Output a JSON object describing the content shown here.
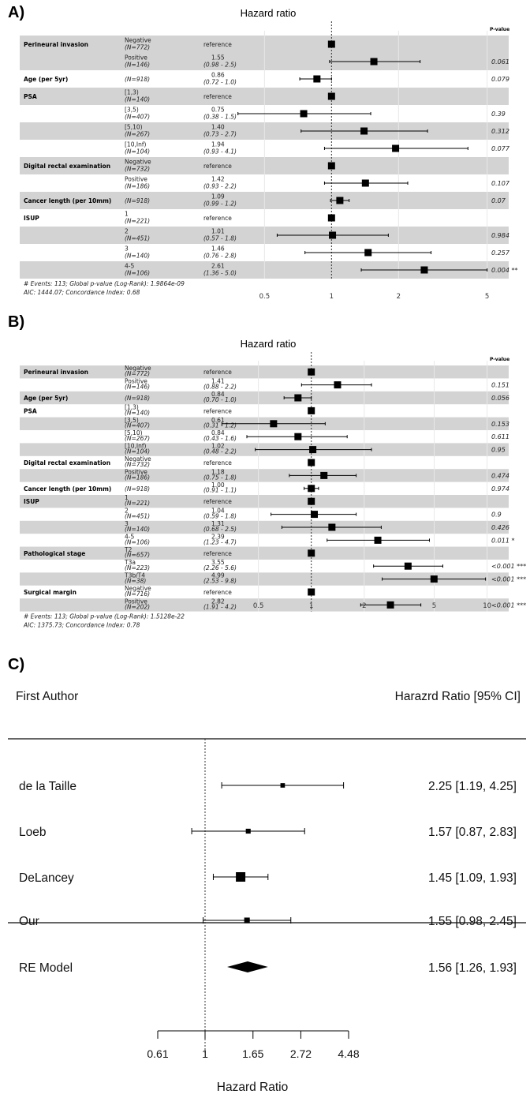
{
  "chart_data": [
    {
      "panel": "A)",
      "type": "forest",
      "title": "Hazard ratio",
      "pvalue_header": "P-value",
      "x_scale": "log",
      "x_ticks": [
        0.5,
        1,
        2,
        5
      ],
      "x_tick_labels": [
        "0.5",
        "1",
        "2",
        "5"
      ],
      "xlim": [
        0.4,
        6
      ],
      "reference_line": 1,
      "rows": [
        {
          "variable": "Perineural invasion",
          "level": "Negative",
          "n": "(N=772)",
          "ref": "reference",
          "hr": 1,
          "shade": true
        },
        {
          "variable": "",
          "level": "Positive",
          "n": "(N=146)",
          "est": "1.55",
          "ci": "(0.98 - 2.5)",
          "hr": 1.55,
          "lo": 0.98,
          "hi": 2.5,
          "p": "0.061",
          "shade": true
        },
        {
          "variable": "Age (per 5yr)",
          "level": "",
          "n": "(N=918)",
          "est": "0.86",
          "ci": "(0.72 - 1.0)",
          "hr": 0.86,
          "lo": 0.72,
          "hi": 1.0,
          "p": "0.079",
          "shade": false
        },
        {
          "variable": "PSA",
          "level": "[1,3)",
          "n": "(N=140)",
          "ref": "reference",
          "hr": 1,
          "shade": true
        },
        {
          "variable": "",
          "level": "[3,5)",
          "n": "(N=407)",
          "est": "0.75",
          "ci": "(0.38 - 1.5)",
          "hr": 0.75,
          "lo": 0.38,
          "hi": 1.5,
          "p": "0.39",
          "shade": false
        },
        {
          "variable": "",
          "level": "[5,10)",
          "n": "(N=267)",
          "est": "1.40",
          "ci": "(0.73 - 2.7)",
          "hr": 1.4,
          "lo": 0.73,
          "hi": 2.7,
          "p": "0.312",
          "shade": true
        },
        {
          "variable": "",
          "level": "[10,Inf)",
          "n": "(N=104)",
          "est": "1.94",
          "ci": "(0.93 - 4.1)",
          "hr": 1.94,
          "lo": 0.93,
          "hi": 4.1,
          "p": "0.077",
          "shade": false
        },
        {
          "variable": "Digital rectal examination",
          "level": "Negative",
          "n": "(N=732)",
          "ref": "reference",
          "hr": 1,
          "shade": true
        },
        {
          "variable": "",
          "level": "Positive",
          "n": "(N=186)",
          "est": "1.42",
          "ci": "(0.93 - 2.2)",
          "hr": 1.42,
          "lo": 0.93,
          "hi": 2.2,
          "p": "0.107",
          "shade": false
        },
        {
          "variable": "Cancer length (per 10mm)",
          "level": "",
          "n": "(N=918)",
          "est": "1.09",
          "ci": "(0.99 - 1.2)",
          "hr": 1.09,
          "lo": 0.99,
          "hi": 1.2,
          "p": "0.07",
          "shade": true
        },
        {
          "variable": "ISUP",
          "level": "1",
          "n": "(N=221)",
          "ref": "reference",
          "hr": 1,
          "shade": false
        },
        {
          "variable": "",
          "level": "2",
          "n": "(N=451)",
          "est": "1.01",
          "ci": "(0.57 - 1.8)",
          "hr": 1.01,
          "lo": 0.57,
          "hi": 1.8,
          "p": "0.984",
          "shade": true
        },
        {
          "variable": "",
          "level": "3",
          "n": "(N=140)",
          "est": "1.46",
          "ci": "(0.76 - 2.8)",
          "hr": 1.46,
          "lo": 0.76,
          "hi": 2.8,
          "p": "0.257",
          "shade": false
        },
        {
          "variable": "",
          "level": "4-5",
          "n": "(N=106)",
          "est": "2.61",
          "ci": "(1.36 - 5.0)",
          "hr": 2.61,
          "lo": 1.36,
          "hi": 5.0,
          "p": "0.004 **",
          "shade": true
        }
      ],
      "footnotes": [
        "# Events: 113; Global p-value (Log-Rank): 1.9864e-09",
        "AIC: 1444.07; Concordance Index: 0.68"
      ]
    },
    {
      "panel": "B)",
      "type": "forest",
      "title": "Hazard ratio",
      "pvalue_header": "P-value",
      "x_scale": "log",
      "x_ticks": [
        0.5,
        1,
        2,
        5,
        10
      ],
      "x_tick_labels": [
        "0.5",
        "1",
        "2",
        "5",
        "10"
      ],
      "xlim": [
        0.4,
        13
      ],
      "reference_line": 1,
      "rows": [
        {
          "variable": "Perineural invasion",
          "level": "Negative",
          "n": "(N=772)",
          "ref": "reference",
          "hr": 1,
          "shade": true
        },
        {
          "variable": "",
          "level": "Positive",
          "n": "(N=146)",
          "est": "1.41",
          "ci": "(0.88 - 2.2)",
          "hr": 1.41,
          "lo": 0.88,
          "hi": 2.2,
          "p": "0.151",
          "shade": false
        },
        {
          "variable": "Age (per 5yr)",
          "level": "",
          "n": "(N=918)",
          "est": "0.84",
          "ci": "(0.70 - 1.0)",
          "hr": 0.84,
          "lo": 0.7,
          "hi": 1.0,
          "p": "0.056",
          "shade": true
        },
        {
          "variable": "PSA",
          "level": "[1,3)",
          "n": "(N=140)",
          "ref": "reference",
          "hr": 1,
          "shade": false
        },
        {
          "variable": "",
          "level": "[3,5)",
          "n": "(N=407)",
          "est": "0.61",
          "ci": "(0.31 - 1.2)",
          "hr": 0.61,
          "lo": 0.31,
          "hi": 1.2,
          "p": "0.153",
          "shade": true
        },
        {
          "variable": "",
          "level": "[5,10)",
          "n": "(N=267)",
          "est": "0.84",
          "ci": "(0.43 - 1.6)",
          "hr": 0.84,
          "lo": 0.43,
          "hi": 1.6,
          "p": "0.611",
          "shade": false
        },
        {
          "variable": "",
          "level": "[10,Inf)",
          "n": "(N=104)",
          "est": "1.02",
          "ci": "(0.48 - 2.2)",
          "hr": 1.02,
          "lo": 0.48,
          "hi": 2.2,
          "p": "0.95",
          "shade": true
        },
        {
          "variable": "Digital rectal examination",
          "level": "Negative",
          "n": "(N=732)",
          "ref": "reference",
          "hr": 1,
          "shade": false
        },
        {
          "variable": "",
          "level": "Positive",
          "n": "(N=186)",
          "est": "1.18",
          "ci": "(0.75 - 1.8)",
          "hr": 1.18,
          "lo": 0.75,
          "hi": 1.8,
          "p": "0.474",
          "shade": true
        },
        {
          "variable": "Cancer length (per 10mm)",
          "level": "",
          "n": "(N=918)",
          "est": "1.00",
          "ci": "(0.91 - 1.1)",
          "hr": 1.0,
          "lo": 0.91,
          "hi": 1.1,
          "p": "0.974",
          "shade": false
        },
        {
          "variable": "ISUP",
          "level": "1",
          "n": "(N=221)",
          "ref": "reference",
          "hr": 1,
          "shade": true
        },
        {
          "variable": "",
          "level": "2",
          "n": "(N=451)",
          "est": "1.04",
          "ci": "(0.59 - 1.8)",
          "hr": 1.04,
          "lo": 0.59,
          "hi": 1.8,
          "p": "0.9",
          "shade": false
        },
        {
          "variable": "",
          "level": "3",
          "n": "(N=140)",
          "est": "1.31",
          "ci": "(0.68 - 2.5)",
          "hr": 1.31,
          "lo": 0.68,
          "hi": 2.5,
          "p": "0.426",
          "shade": true
        },
        {
          "variable": "",
          "level": "4-5",
          "n": "(N=106)",
          "est": "2.39",
          "ci": "(1.23 - 4.7)",
          "hr": 2.39,
          "lo": 1.23,
          "hi": 4.7,
          "p": "0.011 *",
          "shade": false
        },
        {
          "variable": "Pathological stage",
          "level": "T2",
          "n": "(N=657)",
          "ref": "reference",
          "hr": 1,
          "shade": true
        },
        {
          "variable": "",
          "level": "T3a",
          "n": "(N=223)",
          "est": "3.55",
          "ci": "(2.26 - 5.6)",
          "hr": 3.55,
          "lo": 2.26,
          "hi": 5.6,
          "p": "<0.001 ***",
          "shade": false
        },
        {
          "variable": "",
          "level": "T3b/T4",
          "n": "(N=38)",
          "est": "4.99",
          "ci": "(2.53 - 9.8)",
          "hr": 4.99,
          "lo": 2.53,
          "hi": 9.8,
          "p": "<0.001 ***",
          "shade": true
        },
        {
          "variable": "Surgical margin",
          "level": "Negative",
          "n": "(N=716)",
          "ref": "reference",
          "hr": 1,
          "shade": false
        },
        {
          "variable": "",
          "level": "Positive",
          "n": "(N=202)",
          "est": "2.82",
          "ci": "(1.91 - 4.2)",
          "hr": 2.82,
          "lo": 1.91,
          "hi": 4.2,
          "p": "<0.001 ***",
          "shade": true
        }
      ],
      "footnotes": [
        "# Events: 113; Global p-value (Log-Rank): 1.5128e-22",
        "AIC: 1375.73; Concordance Index: 0.78"
      ]
    },
    {
      "panel": "C)",
      "type": "forest-meta",
      "left_header": "First Author",
      "right_header": "Harazrd Ratio [95% CI]",
      "xlabel": "Hazard Ratio",
      "x_scale": "log",
      "x_ticks": [
        0.61,
        1,
        1.65,
        2.72,
        4.48
      ],
      "x_tick_labels": [
        "0.61",
        "1",
        "1.65",
        "2.72",
        "4.48"
      ],
      "reference_line": 1,
      "studies": [
        {
          "author": "de la Taille",
          "hr": 2.25,
          "lo": 1.19,
          "hi": 4.25,
          "text": "2.25 [1.19, 4.25]",
          "weight": 0.3
        },
        {
          "author": "Loeb",
          "hr": 1.57,
          "lo": 0.87,
          "hi": 2.83,
          "text": "1.57 [0.87, 2.83]",
          "weight": 0.35
        },
        {
          "author": "DeLancey",
          "hr": 1.45,
          "lo": 1.09,
          "hi": 1.93,
          "text": "1.45 [1.09, 1.93]",
          "weight": 1.0
        },
        {
          "author": "Our",
          "hr": 1.55,
          "lo": 0.98,
          "hi": 2.45,
          "text": "1.55 [0.98, 2.45]",
          "weight": 0.45
        }
      ],
      "summary": {
        "label": "RE Model",
        "hr": 1.56,
        "lo": 1.26,
        "hi": 1.93,
        "text": "1.56 [1.26, 1.93]"
      }
    }
  ]
}
